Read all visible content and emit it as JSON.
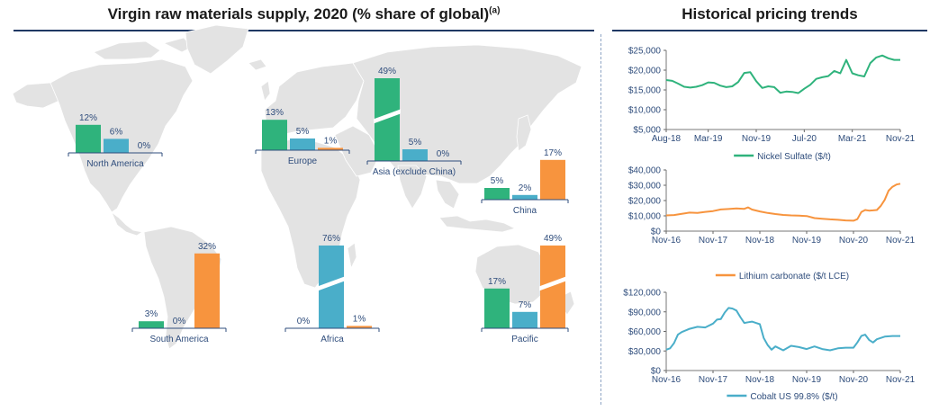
{
  "titles": {
    "left": "Virgin raw materials supply, 2020 (% share of global)",
    "left_superscript": "(a)",
    "right": "Historical pricing trends"
  },
  "colors": {
    "nickel": "#2fb37c",
    "lithium": "#f7943e",
    "cobalt": "#4aaec9",
    "navy": "#1f3864",
    "label": "#2f4d7c",
    "map": "#e3e3e3"
  },
  "legend": [
    {
      "key": "nickel",
      "label": "Nickel"
    },
    {
      "key": "lithium",
      "label": "Lithium"
    },
    {
      "key": "cobalt",
      "label": "Cobalt"
    }
  ],
  "chart_data": [
    {
      "type": "bar",
      "title": "Virgin raw materials supply, 2020 (% share of global)",
      "unit": "%",
      "series_names": [
        "Nickel",
        "Cobalt",
        "Lithium"
      ],
      "regions": [
        {
          "name": "North America",
          "bars": [
            {
              "series": "Nickel",
              "value": 12,
              "label": "12%"
            },
            {
              "series": "Cobalt",
              "value": 6,
              "label": "6%"
            },
            {
              "series": "Lithium",
              "value": 0,
              "label": "0%"
            }
          ]
        },
        {
          "name": "South America",
          "bars": [
            {
              "series": "Nickel",
              "value": 3,
              "label": "3%"
            },
            {
              "series": "Cobalt",
              "value": 0,
              "label": "0%"
            },
            {
              "series": "Lithium",
              "value": 32,
              "label": "32%"
            }
          ]
        },
        {
          "name": "Europe",
          "bars": [
            {
              "series": "Nickel",
              "value": 13,
              "label": "13%"
            },
            {
              "series": "Cobalt",
              "value": 5,
              "label": "5%"
            },
            {
              "series": "Lithium",
              "value": 1,
              "label": "1%"
            }
          ]
        },
        {
          "name": "Africa",
          "bars": [
            {
              "series": "Nickel",
              "value": 0,
              "label": "0%"
            },
            {
              "series": "Cobalt",
              "value": 76,
              "label": "76%",
              "broken": true
            },
            {
              "series": "Lithium",
              "value": 1,
              "label": "1%"
            }
          ]
        },
        {
          "name": "Asia (exclude China)",
          "bars": [
            {
              "series": "Nickel",
              "value": 49,
              "label": "49%",
              "broken": true
            },
            {
              "series": "Cobalt",
              "value": 5,
              "label": "5%"
            },
            {
              "series": "Lithium",
              "value": 0,
              "label": "0%"
            }
          ]
        },
        {
          "name": "China",
          "bars": [
            {
              "series": "Nickel",
              "value": 5,
              "label": "5%"
            },
            {
              "series": "Cobalt",
              "value": 2,
              "label": "2%"
            },
            {
              "series": "Lithium",
              "value": 17,
              "label": "17%"
            }
          ]
        },
        {
          "name": "Pacific",
          "bars": [
            {
              "series": "Nickel",
              "value": 17,
              "label": "17%"
            },
            {
              "series": "Cobalt",
              "value": 7,
              "label": "7%"
            },
            {
              "series": "Lithium",
              "value": 49,
              "label": "49%",
              "broken": true
            }
          ]
        }
      ]
    },
    {
      "type": "line",
      "legend": "Nickel Sulfate ($/t)",
      "color": "#2fb37c",
      "ylim": [
        5000,
        25000
      ],
      "yticks": [
        5000,
        10000,
        15000,
        20000,
        25000
      ],
      "ytick_labels": [
        "$5,000",
        "$10,000",
        "$15,000",
        "$20,000",
        "$25,000"
      ],
      "xlim": [
        0,
        39
      ],
      "xtick_pos": [
        0,
        7,
        15,
        23,
        31,
        39
      ],
      "xtick_labels": [
        "Aug-18",
        "Mar-19",
        "Nov-19",
        "Jul-20",
        "Mar-21",
        "Nov-21"
      ],
      "x": [
        0,
        1,
        2,
        3,
        4,
        5,
        6,
        7,
        8,
        9,
        10,
        11,
        12,
        13,
        14,
        15,
        16,
        17,
        18,
        19,
        20,
        21,
        22,
        23,
        24,
        25,
        26,
        27,
        28,
        29,
        30,
        31,
        32,
        33,
        34,
        35,
        36,
        37,
        38,
        39
      ],
      "y": [
        17500,
        17300,
        16600,
        15800,
        15600,
        15800,
        16200,
        16900,
        16800,
        16100,
        15700,
        15900,
        17000,
        19300,
        19500,
        17200,
        15500,
        15900,
        15700,
        14300,
        14600,
        14500,
        14200,
        15300,
        16300,
        17800,
        18200,
        18500,
        19800,
        19200,
        22600,
        19200,
        18700,
        18400,
        21800,
        23200,
        23700,
        23000,
        22600,
        22600
      ]
    },
    {
      "type": "line",
      "legend": "Lithium carbonate ($/t LCE)",
      "color": "#f7943e",
      "ylim": [
        0,
        40000
      ],
      "yticks": [
        0,
        10000,
        20000,
        30000,
        40000
      ],
      "ytick_labels": [
        "$0",
        "$10,000",
        "$20,000",
        "$30,000",
        "$40,000"
      ],
      "xlim": [
        0,
        60
      ],
      "xtick_pos": [
        0,
        12,
        24,
        36,
        48,
        60
      ],
      "xtick_labels": [
        "Nov-16",
        "Nov-17",
        "Nov-18",
        "Nov-19",
        "Nov-20",
        "Nov-21"
      ],
      "x": [
        0,
        2,
        4,
        6,
        8,
        10,
        12,
        14,
        16,
        18,
        20,
        21,
        22,
        24,
        26,
        28,
        30,
        32,
        34,
        36,
        38,
        40,
        42,
        44,
        46,
        48,
        49,
        50,
        51,
        52,
        53,
        54,
        55,
        56,
        57,
        58,
        59,
        60
      ],
      "y": [
        10300,
        10500,
        11300,
        12100,
        11900,
        12600,
        13100,
        14200,
        14500,
        14800,
        14600,
        15500,
        14100,
        12900,
        11900,
        11200,
        10600,
        10300,
        10100,
        9900,
        8500,
        8100,
        7700,
        7400,
        7000,
        6800,
        7800,
        12500,
        13800,
        13400,
        13600,
        13800,
        16500,
        20500,
        26500,
        29000,
        30500,
        31000
      ]
    },
    {
      "type": "line",
      "legend": "Cobalt US 99.8% ($/t)",
      "color": "#4aaec9",
      "ylim": [
        0,
        120000
      ],
      "yticks": [
        0,
        30000,
        60000,
        90000,
        120000
      ],
      "ytick_labels": [
        "$0",
        "$30,000",
        "$60,000",
        "$90,000",
        "$120,000"
      ],
      "xlim": [
        0,
        60
      ],
      "xtick_pos": [
        0,
        12,
        24,
        36,
        48,
        60
      ],
      "xtick_labels": [
        "Nov-16",
        "Nov-17",
        "Nov-18",
        "Nov-19",
        "Nov-20",
        "Nov-21"
      ],
      "x": [
        0,
        1,
        2,
        3,
        4,
        6,
        8,
        10,
        12,
        13,
        14,
        15,
        16,
        17,
        18,
        19,
        20,
        21,
        22,
        23,
        24,
        25,
        26,
        27,
        28,
        30,
        32,
        34,
        36,
        38,
        40,
        42,
        44,
        46,
        48,
        49,
        50,
        51,
        52,
        53,
        54,
        56,
        58,
        60
      ],
      "y": [
        32000,
        34000,
        42000,
        55000,
        59000,
        64000,
        67000,
        66000,
        72000,
        78000,
        79000,
        89000,
        96000,
        95000,
        92000,
        82000,
        73000,
        74000,
        75000,
        73000,
        71000,
        50000,
        39000,
        32000,
        37000,
        31000,
        38000,
        36000,
        33000,
        37000,
        33000,
        31000,
        34000,
        35000,
        35000,
        43000,
        53000,
        55000,
        47000,
        43000,
        48000,
        52000,
        53000,
        53000
      ]
    }
  ]
}
